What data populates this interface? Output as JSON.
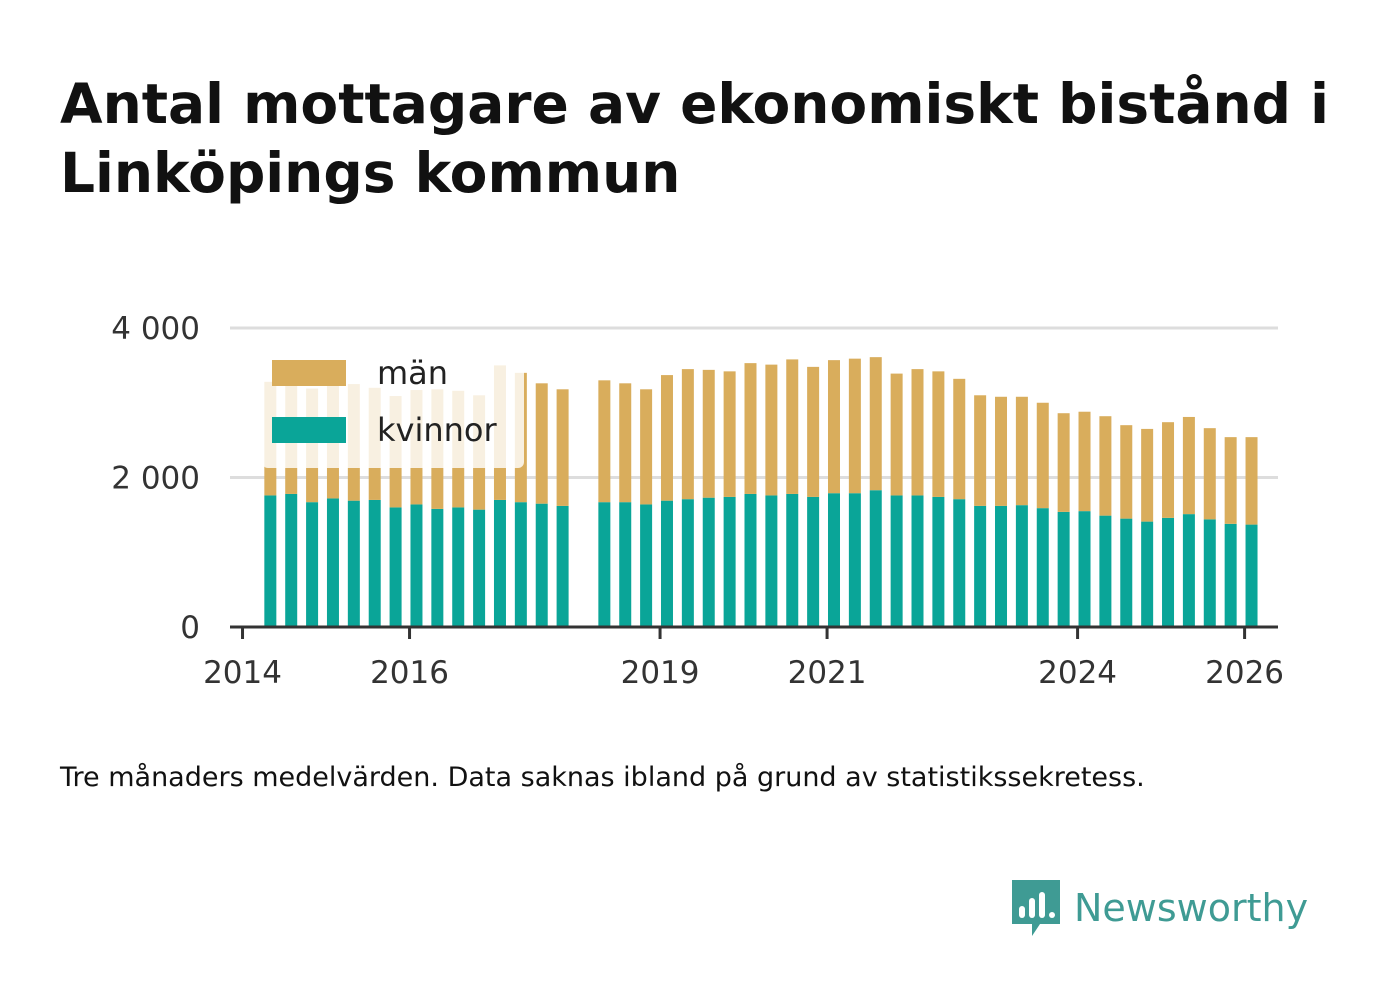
{
  "title": "Antal mottagare av ekonomiskt bistånd i Linköpings kommun",
  "caption": "Tre månaders medelvärden. Data saknas ibland på grund av statistikssekretess.",
  "brand": {
    "name": "Newsworthy",
    "icon": "newsworthy-logo-icon",
    "color": "#3f9b94"
  },
  "colors": {
    "men": "#d9ad5c",
    "women": "#0aa598",
    "grid": "#dddddd",
    "axis": "#333333"
  },
  "chart_data": {
    "type": "bar",
    "stacked": true,
    "title": "Antal mottagare av ekonomiskt bistånd i Linköpings kommun",
    "xlabel": "",
    "ylabel": "",
    "ylim": [
      0,
      4000
    ],
    "xlim": [
      2013.85,
      2026.4
    ],
    "yticks": [
      0,
      2000,
      4000
    ],
    "ytick_labels": [
      "0",
      "2 000",
      "4 000"
    ],
    "xticks": [
      2014,
      2016,
      2019,
      2021,
      2024,
      2026
    ],
    "xtick_labels": [
      "2014",
      "2016",
      "2019",
      "2021",
      "2024",
      "2026"
    ],
    "legend": {
      "placement": "top-left",
      "items": [
        "män",
        "kvinnor"
      ]
    },
    "grid": true,
    "x": [
      2014.333,
      2014.583,
      2014.833,
      2015.083,
      2015.333,
      2015.583,
      2015.833,
      2016.083,
      2016.333,
      2016.583,
      2016.833,
      2017.083,
      2017.333,
      2017.583,
      2017.833,
      2018.333,
      2018.583,
      2018.833,
      2019.083,
      2019.333,
      2019.583,
      2019.833,
      2020.083,
      2020.333,
      2020.583,
      2020.833,
      2021.083,
      2021.333,
      2021.583,
      2021.833,
      2022.083,
      2022.333,
      2022.583,
      2022.833,
      2023.083,
      2023.333,
      2023.583,
      2023.833,
      2024.083,
      2024.333,
      2024.583,
      2024.833,
      2025.083,
      2025.333,
      2025.583,
      2025.833,
      2026.083
    ],
    "series": [
      {
        "name": "kvinnor",
        "values": [
          1760,
          1780,
          1670,
          1720,
          1690,
          1700,
          1600,
          1640,
          1580,
          1600,
          1570,
          1700,
          1670,
          1650,
          1620,
          1670,
          1670,
          1640,
          1690,
          1710,
          1730,
          1740,
          1780,
          1760,
          1780,
          1740,
          1790,
          1790,
          1830,
          1760,
          1760,
          1740,
          1710,
          1620,
          1620,
          1630,
          1590,
          1540,
          1550,
          1490,
          1450,
          1410,
          1460,
          1510,
          1440,
          1380,
          1370
        ]
      },
      {
        "name": "män",
        "values": [
          1520,
          1470,
          1520,
          1710,
          1560,
          1500,
          1490,
          1530,
          1600,
          1560,
          1530,
          1800,
          1730,
          1610,
          1560,
          1630,
          1590,
          1540,
          1680,
          1740,
          1710,
          1680,
          1750,
          1750,
          1800,
          1740,
          1780,
          1800,
          1780,
          1630,
          1690,
          1680,
          1610,
          1480,
          1460,
          1450,
          1410,
          1320,
          1330,
          1330,
          1250,
          1240,
          1280,
          1300,
          1220,
          1160,
          1170
        ]
      }
    ]
  }
}
